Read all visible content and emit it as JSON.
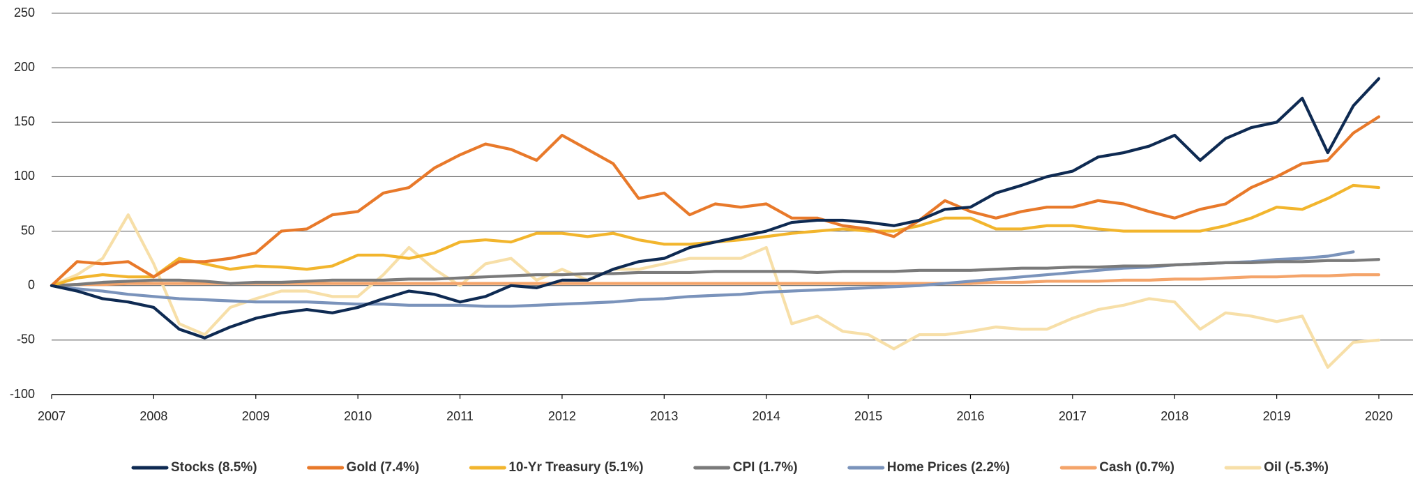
{
  "chart_data": {
    "type": "line",
    "x": [
      2007,
      2007.25,
      2007.5,
      2007.75,
      2008,
      2008.25,
      2008.5,
      2008.75,
      2009,
      2009.25,
      2009.5,
      2009.75,
      2010,
      2010.25,
      2010.5,
      2010.75,
      2011,
      2011.25,
      2011.5,
      2011.75,
      2012,
      2012.25,
      2012.5,
      2012.75,
      2013,
      2013.25,
      2013.5,
      2013.75,
      2014,
      2014.25,
      2014.5,
      2014.75,
      2015,
      2015.25,
      2015.5,
      2015.75,
      2016,
      2016.25,
      2016.5,
      2016.75,
      2017,
      2017.25,
      2017.5,
      2017.75,
      2018,
      2018.25,
      2018.5,
      2018.75,
      2019,
      2019.25,
      2019.5,
      2019.75,
      2020
    ],
    "xlim": [
      2007,
      2020
    ],
    "xticks": [
      2007,
      2008,
      2009,
      2010,
      2011,
      2012,
      2013,
      2014,
      2015,
      2016,
      2017,
      2018,
      2019,
      2020
    ],
    "ylim": [
      -100,
      250
    ],
    "yticks": [
      -100,
      -50,
      0,
      50,
      100,
      150,
      200,
      250
    ],
    "grid": true,
    "legend": "bottom",
    "series": [
      {
        "name": "Stocks (8.5%)",
        "color": "#0e2a52",
        "values": [
          0,
          -5,
          -12,
          -15,
          -20,
          -40,
          -48,
          -38,
          -30,
          -25,
          -22,
          -25,
          -20,
          -12,
          -5,
          -8,
          -15,
          -10,
          0,
          -2,
          5,
          5,
          15,
          22,
          25,
          35,
          40,
          45,
          50,
          58,
          60,
          60,
          58,
          55,
          60,
          70,
          72,
          85,
          92,
          100,
          105,
          118,
          122,
          128,
          138,
          115,
          135,
          145,
          150,
          172,
          122,
          165,
          190
        ]
      },
      {
        "name": "Gold (7.4%)",
        "color": "#e8792a",
        "values": [
          0,
          22,
          20,
          22,
          8,
          22,
          22,
          25,
          30,
          50,
          52,
          65,
          68,
          85,
          90,
          108,
          120,
          130,
          125,
          115,
          138,
          125,
          112,
          80,
          85,
          65,
          75,
          72,
          75,
          62,
          62,
          55,
          52,
          45,
          60,
          78,
          68,
          62,
          68,
          72,
          72,
          78,
          75,
          68,
          62,
          70,
          75,
          90,
          100,
          112,
          115,
          140,
          155
        ]
      },
      {
        "name": "10-Yr Treasury (5.1%)",
        "color": "#f2b52d",
        "values": [
          0,
          7,
          10,
          8,
          8,
          25,
          20,
          15,
          18,
          17,
          15,
          18,
          28,
          28,
          25,
          30,
          40,
          42,
          40,
          48,
          48,
          45,
          48,
          42,
          38,
          38,
          40,
          42,
          45,
          48,
          50,
          52,
          50,
          50,
          55,
          62,
          62,
          52,
          52,
          55,
          55,
          52,
          50,
          50,
          50,
          50,
          55,
          62,
          72,
          70,
          80,
          92,
          90
        ]
      },
      {
        "name": "CPI (1.7%)",
        "color": "#7a7a7a",
        "values": [
          0,
          1,
          3,
          4,
          5,
          5,
          4,
          2,
          3,
          3,
          4,
          5,
          5,
          5,
          6,
          6,
          7,
          8,
          9,
          10,
          10,
          11,
          11,
          12,
          12,
          12,
          13,
          13,
          13,
          13,
          12,
          13,
          13,
          13,
          14,
          14,
          14,
          15,
          16,
          16,
          17,
          17,
          18,
          18,
          19,
          20,
          21,
          21,
          22,
          22,
          23,
          23,
          24
        ]
      },
      {
        "name": "Home Prices (2.2%)",
        "color": "#7a93bb",
        "values": [
          0,
          -3,
          -5,
          -8,
          -10,
          -12,
          -13,
          -14,
          -15,
          -15,
          -15,
          -16,
          -17,
          -17,
          -18,
          -18,
          -18,
          -19,
          -19,
          -18,
          -17,
          -16,
          -15,
          -13,
          -12,
          -10,
          -9,
          -8,
          -6,
          -5,
          -4,
          -3,
          -2,
          -1,
          0,
          2,
          4,
          6,
          8,
          10,
          12,
          14,
          16,
          17,
          19,
          20,
          21,
          22,
          24,
          25,
          27,
          31,
          null
        ]
      },
      {
        "name": "Cash (0.7%)",
        "color": "#f4a46a",
        "values": [
          0,
          1,
          1,
          2,
          2,
          2,
          2,
          2,
          2,
          2,
          2,
          2,
          2,
          2,
          2,
          2,
          2,
          2,
          2,
          2,
          2,
          2,
          2,
          2,
          2,
          2,
          2,
          2,
          2,
          2,
          2,
          2,
          2,
          2,
          2,
          2,
          2,
          3,
          3,
          4,
          4,
          4,
          5,
          5,
          6,
          6,
          7,
          8,
          8,
          9,
          9,
          10,
          10
        ]
      },
      {
        "name": "Oil (-5.3%)",
        "color": "#f7dfa8",
        "values": [
          0,
          10,
          25,
          65,
          20,
          -35,
          -45,
          -20,
          -12,
          -5,
          -5,
          -10,
          -10,
          10,
          35,
          15,
          0,
          20,
          25,
          5,
          15,
          5,
          15,
          15,
          20,
          25,
          25,
          25,
          35,
          -35,
          -28,
          -42,
          -45,
          -58,
          -45,
          -45,
          -42,
          -38,
          -40,
          -40,
          -30,
          -22,
          -18,
          -12,
          -15,
          -40,
          -25,
          -28,
          -33,
          -28,
          -75,
          -52,
          -50
        ]
      }
    ]
  }
}
